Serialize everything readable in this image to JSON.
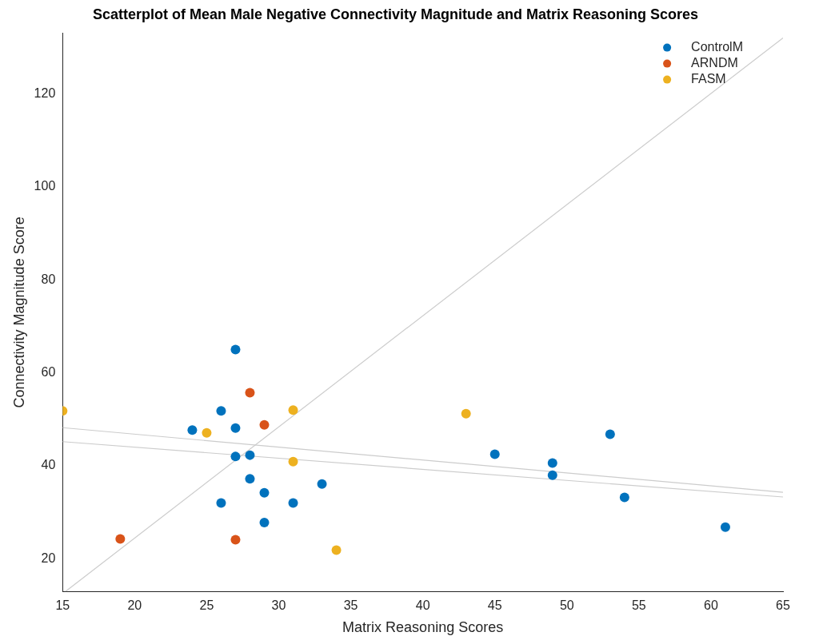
{
  "chart_data": {
    "type": "scatter",
    "title": "Scatterplot of Mean Male Negative Connectivity Magnitude and Matrix Reasoning Scores",
    "xlabel": "Matrix Reasoning Scores",
    "ylabel": "Connectivity Magnitude Score",
    "xlim": [
      15,
      65
    ],
    "xticks": [
      15,
      20,
      25,
      30,
      35,
      40,
      45,
      50,
      55,
      60,
      65
    ],
    "ylim": [
      13,
      133
    ],
    "yticks": [
      20,
      40,
      60,
      80,
      100,
      120
    ],
    "grid": false,
    "legend": "top right",
    "marker": "circle",
    "series": [
      {
        "name": "ControlM",
        "color": "#0072bd",
        "x": [
          27,
          26,
          24,
          27,
          27,
          28,
          28,
          29,
          26,
          31,
          29,
          33,
          45,
          49,
          49,
          53,
          54,
          61
        ],
        "values": [
          65.0,
          51.8,
          47.7,
          48.1,
          42.0,
          42.3,
          37.2,
          34.2,
          32.0,
          32.0,
          27.8,
          36.1,
          42.5,
          40.6,
          38.0,
          46.8,
          33.2,
          26.8
        ]
      },
      {
        "name": "ARNDM",
        "color": "#d95319",
        "x": [
          28,
          29,
          19,
          27
        ],
        "values": [
          55.7,
          48.8,
          24.3,
          24.1
        ]
      },
      {
        "name": "FASM",
        "color": "#edb120",
        "x": [
          15,
          25,
          31,
          31,
          34,
          43
        ],
        "values": [
          51.8,
          47.1,
          52.0,
          40.9,
          21.9,
          51.2
        ]
      },
      {
        "type": "line",
        "color": "#cccccc",
        "marker": "none",
        "x": [
          15.2,
          65
        ],
        "values": [
          13,
          132
        ]
      },
      {
        "type": "line",
        "color": "#cccccc",
        "marker": "none",
        "x": [
          15,
          65
        ],
        "values": [
          48.2,
          34.3
        ]
      },
      {
        "type": "line",
        "color": "#cccccc",
        "marker": "none",
        "x": [
          15,
          65
        ],
        "values": [
          45.2,
          33.3
        ]
      }
    ]
  }
}
